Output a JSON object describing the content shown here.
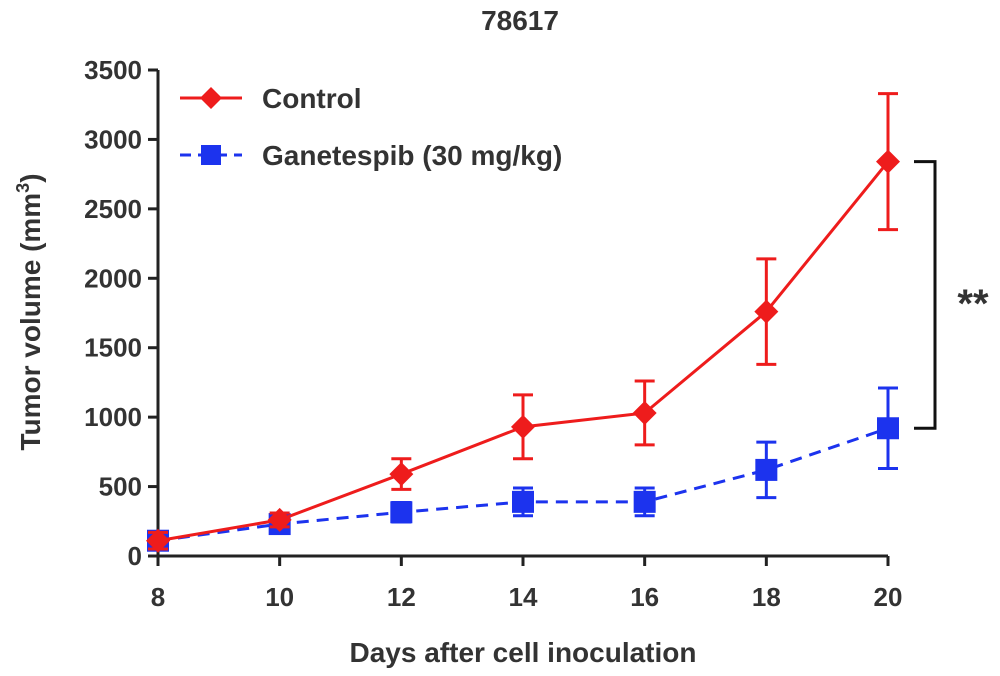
{
  "chart_data": {
    "type": "line",
    "title": "78617",
    "xlabel": "Days after cell inoculation",
    "ylabel": "Tumor volume (mm",
    "ylabel_superscript": "3",
    "ylabel_suffix": ")",
    "x": [
      8,
      10,
      12,
      14,
      16,
      18,
      20
    ],
    "xlim": [
      8,
      20
    ],
    "ylim": [
      0,
      3500
    ],
    "xticks": [
      8,
      10,
      12,
      14,
      16,
      18,
      20
    ],
    "yticks": [
      0,
      500,
      1000,
      1500,
      2000,
      2500,
      3000,
      3500
    ],
    "grid": false,
    "legend_position": "top-left",
    "series": [
      {
        "name": "Control",
        "color": "#ee1c1c",
        "marker": "diamond",
        "line_style": "solid",
        "values": [
          110,
          260,
          590,
          930,
          1030,
          1760,
          2840
        ],
        "errors": [
          60,
          50,
          110,
          230,
          230,
          380,
          490
        ]
      },
      {
        "name": "Ganetespib (30 mg/kg)",
        "color": "#1c33ee",
        "marker": "square",
        "line_style": "dashed",
        "values": [
          110,
          230,
          315,
          390,
          390,
          620,
          920
        ],
        "errors": [
          50,
          40,
          70,
          100,
          100,
          200,
          290
        ]
      }
    ],
    "annotations": [
      {
        "type": "significance-bracket",
        "label": "**",
        "x": 20,
        "y_from": 920,
        "y_to": 2840
      }
    ]
  }
}
